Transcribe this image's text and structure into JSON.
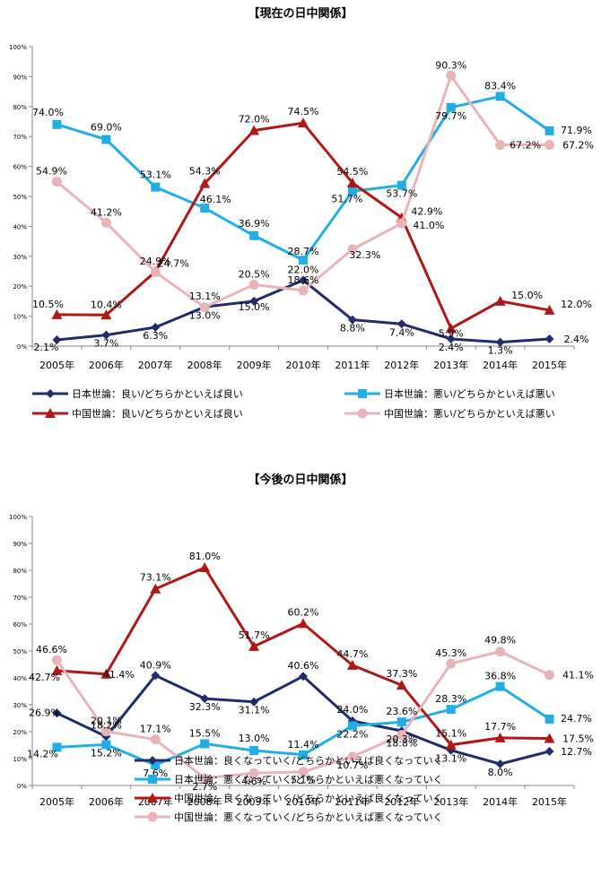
{
  "charts": [
    {
      "title": "【現在の日中関係】",
      "chart_data": {
        "type": "line",
        "categories": [
          "2005年",
          "2006年",
          "2007年",
          "2008年",
          "2009年",
          "2010年",
          "2011年",
          "2012年",
          "2013年",
          "2014年",
          "2015年"
        ],
        "yticks": [
          "0%",
          "10%",
          "20%",
          "30%",
          "40%",
          "50%",
          "60%",
          "70%",
          "80%",
          "90%",
          "100%"
        ],
        "ylim": [
          0,
          100
        ],
        "grid": false,
        "legend_position": "bottom",
        "series": [
          {
            "name": "日本世論：良い/どちらかといえば良い",
            "color": "#1f2d6b",
            "marker": "diamond",
            "values": [
              2.1,
              3.7,
              6.3,
              13.1,
              15.0,
              22.0,
              8.8,
              7.4,
              2.4,
              1.3,
              2.4
            ],
            "labels": [
              "2.1%",
              "3.7%",
              "6.3%",
              "13.1%",
              "15.0%",
              "22.0%",
              "8.8%",
              "7.4%",
              "2.4%",
              "1.3%",
              "2.4%"
            ]
          },
          {
            "name": "日本世論：悪い/どちらかといえば悪い",
            "color": "#21aee6",
            "marker": "square",
            "values": [
              74.0,
              69.0,
              53.1,
              46.1,
              36.9,
              28.7,
              51.7,
              53.7,
              79.7,
              83.4,
              71.9
            ],
            "labels": [
              "74.0%",
              "69.0%",
              "53.1%",
              "46.1%",
              "36.9%",
              "28.7%",
              "51.7%",
              "53.7%",
              "79.7%",
              "83.4%",
              "71.9%"
            ]
          },
          {
            "name": "中国世論：良い/どちらかといえば良い",
            "color": "#b01818",
            "marker": "triangle",
            "values": [
              10.5,
              10.4,
              24.9,
              54.3,
              72.0,
              74.5,
              54.5,
              42.9,
              5.9,
              15.0,
              12.0
            ],
            "labels": [
              "10.5%",
              "10.4%",
              "24.9%",
              "54.3%",
              "72.0%",
              "74.5%",
              "54.5%",
              "42.9%",
              "5.9%",
              "15.0%",
              "12.0%"
            ]
          },
          {
            "name": "中国世論：悪い/どちらかといえば悪い",
            "color": "#e8b4b8",
            "marker": "circle",
            "values": [
              54.9,
              41.2,
              24.7,
              13.0,
              20.5,
              18.6,
              32.3,
              41.0,
              90.3,
              67.2,
              67.2
            ],
            "labels": [
              "54.9%",
              "41.2%",
              "24.7%",
              "13.0%",
              "20.5%",
              "18.6%",
              "32.3%",
              "41.0%",
              "90.3%",
              "67.2%",
              "67.2%"
            ]
          }
        ]
      }
    },
    {
      "title": "【今後の日中関係】",
      "chart_data": {
        "type": "line",
        "categories": [
          "2005年",
          "2006年",
          "2007年",
          "2008年",
          "2009年",
          "2010年",
          "2011年",
          "2012年",
          "2013年",
          "2014年",
          "2015年"
        ],
        "yticks": [
          "0%",
          "10%",
          "20%",
          "30%",
          "40%",
          "50%",
          "60%",
          "70%",
          "80%",
          "90%",
          "100%"
        ],
        "ylim": [
          0,
          100
        ],
        "grid": false,
        "legend_position": "bottom",
        "series": [
          {
            "name": "日本世論：良くなっていく/どちらかといえば良くなっていく",
            "color": "#1f2d6b",
            "marker": "diamond",
            "values": [
              26.9,
              18.2,
              40.9,
              32.3,
              31.1,
              40.6,
              24.0,
              20.3,
              13.1,
              8.0,
              12.7
            ],
            "labels": [
              "26.9%",
              "18.2%",
              "40.9%",
              "32.3%",
              "31.1%",
              "40.6%",
              "24.0%",
              "20.3%",
              "13.1%",
              "8.0%",
              "12.7%"
            ]
          },
          {
            "name": "日本世論：悪くなっていく/どちらかといえば悪くなっていく",
            "color": "#21aee6",
            "marker": "square",
            "values": [
              14.2,
              15.2,
              7.6,
              15.5,
              13.0,
              11.4,
              22.2,
              23.6,
              28.3,
              36.8,
              24.7
            ],
            "labels": [
              "14.2%",
              "15.2%",
              "7.6%",
              "15.5%",
              "13.0%",
              "11.4%",
              "22.2%",
              "23.6%",
              "28.3%",
              "36.8%",
              "24.7%"
            ]
          },
          {
            "name": "中国世論：良くなっていく/どちらかといえば良くなっていく",
            "color": "#b01818",
            "marker": "triangle",
            "values": [
              42.7,
              41.4,
              73.1,
              81.0,
              51.7,
              60.2,
              44.7,
              37.3,
              15.1,
              17.7,
              17.5
            ],
            "labels": [
              "42.7%",
              "41.4%",
              "73.1%",
              "81.0%",
              "51.7%",
              "60.2%",
              "44.7%",
              "37.3%",
              "15.1%",
              "17.7%",
              "17.5%"
            ]
          },
          {
            "name": "中国世論：悪くなっていく/どちらかといえば悪くなっていく",
            "color": "#e8b4b8",
            "marker": "circle",
            "values": [
              46.6,
              20.1,
              17.1,
              2.7,
              4.6,
              5.1,
              10.7,
              18.8,
              45.3,
              49.8,
              41.1
            ],
            "labels": [
              "46.6%",
              "20.1%",
              "17.1%",
              "2.7%",
              "4.6%",
              "5.1%",
              "10.7%",
              "18.8%",
              "45.3%",
              "49.8%",
              "41.1%"
            ]
          }
        ]
      }
    }
  ]
}
